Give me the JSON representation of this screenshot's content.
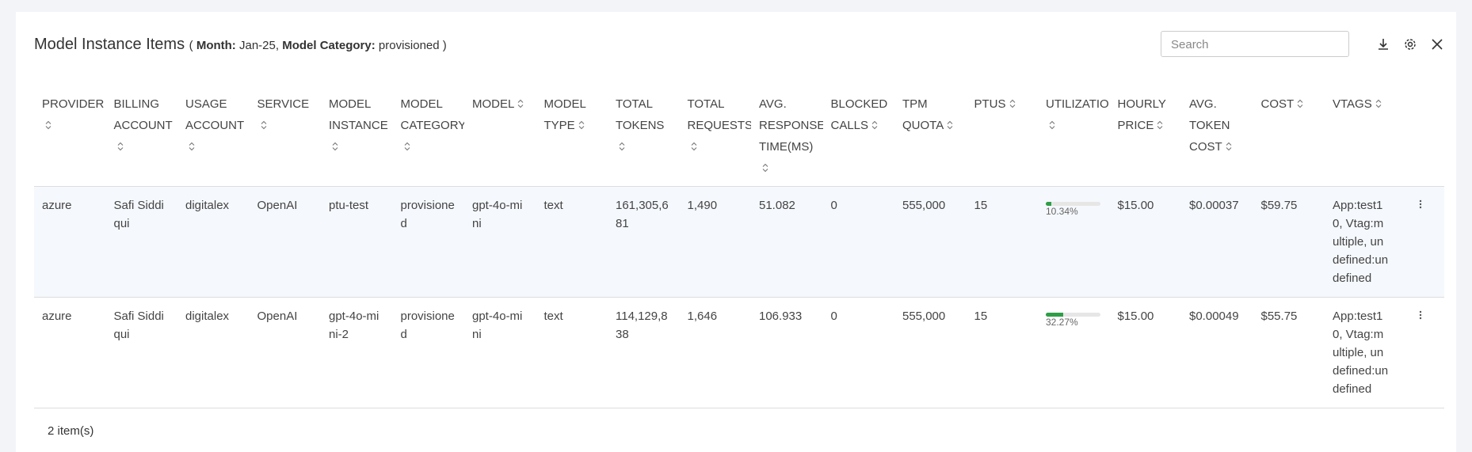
{
  "header": {
    "title": "Model Instance Items",
    "open": "(",
    "close": ")",
    "separator": ",",
    "filters": [
      {
        "label": "Month:",
        "value": "Jan-25"
      },
      {
        "label": "Model Category:",
        "value": "provisioned"
      }
    ],
    "search_placeholder": "Search"
  },
  "table": {
    "columns": [
      "PROVIDER",
      "BILLING ACCOUNT",
      "USAGE ACCOUNT",
      "SERVICE",
      "MODEL INSTANCE",
      "MODEL CATEGORY",
      "MODEL",
      "MODEL TYPE",
      "TOTAL TOKENS",
      "TOTAL REQUESTS",
      "AVG. RESPONSE TIME(MS)",
      "BLOCKED CALLS",
      "TPM QUOTA",
      "PTUS",
      "UTILIZATIO",
      "HOURLY PRICE",
      "AVG. TOKEN COST",
      "COST",
      "VTAGS"
    ],
    "rows": [
      [
        "azure",
        "Safi Siddiqui",
        "digitalex",
        "OpenAI",
        "ptu-test",
        "provisioned",
        "gpt-4o-mini",
        "text",
        "161,305,681",
        "1,490",
        "51.082",
        "0",
        "555,000",
        "15",
        {
          "value": 10.34,
          "label": "10.34%"
        },
        "$15.00",
        "$0.00037",
        "$59.75",
        "App:test10, Vtag:multiple, undefined:undefined"
      ],
      [
        "azure",
        "Safi Siddiqui",
        "digitalex",
        "OpenAI",
        "gpt-4o-mini-2",
        "provisioned",
        "gpt-4o-mini",
        "text",
        "114,129,838",
        "1,646",
        "106.933",
        "0",
        "555,000",
        "15",
        {
          "value": 32.27,
          "label": "32.27%"
        },
        "$15.00",
        "$0.00049",
        "$55.75",
        "App:test10, Vtag:multiple, undefined:undefined"
      ]
    ]
  },
  "footer": {
    "count": "2 item(s)"
  }
}
